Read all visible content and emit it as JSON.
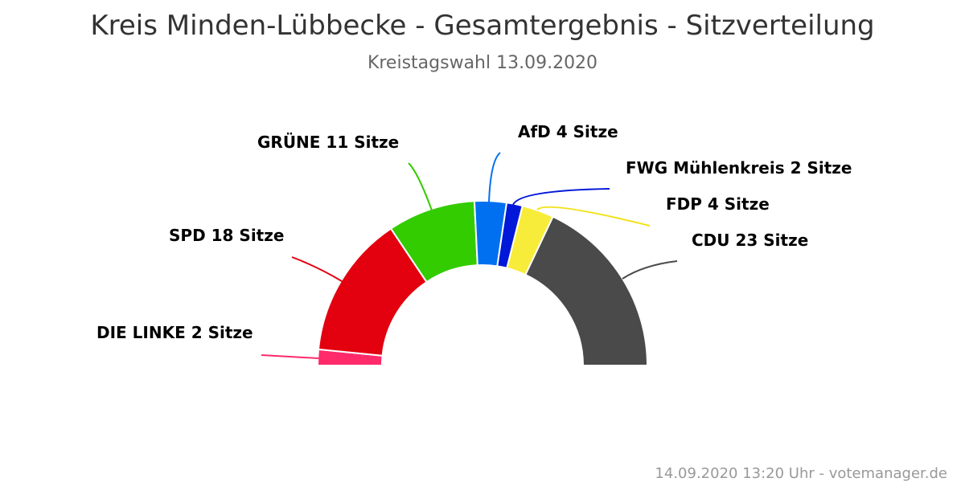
{
  "title": "Kreis Minden-Lübbecke - Gesamtergebnis - Sitzverteilung",
  "subtitle": "Kreistagswahl 13.09.2020",
  "footer": "14.09.2020 13:20 Uhr - votemanager.de",
  "chart_data": {
    "type": "pie",
    "variant": "semicircle parliament",
    "total_seats": 64,
    "unit": "Sitze",
    "slices": [
      {
        "name": "DIE LINKE",
        "value": 2,
        "label": "DIE LINKE 2 Sitze",
        "color": "#ff2a6a"
      },
      {
        "name": "SPD",
        "value": 18,
        "label": "SPD 18 Sitze",
        "color": "#e3000f"
      },
      {
        "name": "GRÜNE",
        "value": 11,
        "label": "GRÜNE 11 Sitze",
        "color": "#33cc00"
      },
      {
        "name": "AfD",
        "value": 4,
        "label": "AfD 4 Sitze",
        "color": "#0070f0"
      },
      {
        "name": "FWG Mühlenkreis",
        "value": 2,
        "label": "FWG Mühlenkreis 2 Sitze",
        "color": "#0018d8"
      },
      {
        "name": "FDP",
        "value": 4,
        "label": "FDP 4 Sitze",
        "color": "#f8ec3a"
      },
      {
        "name": "CDU",
        "value": 23,
        "label": "CDU 23 Sitze",
        "color": "#4a4a4a"
      }
    ]
  }
}
